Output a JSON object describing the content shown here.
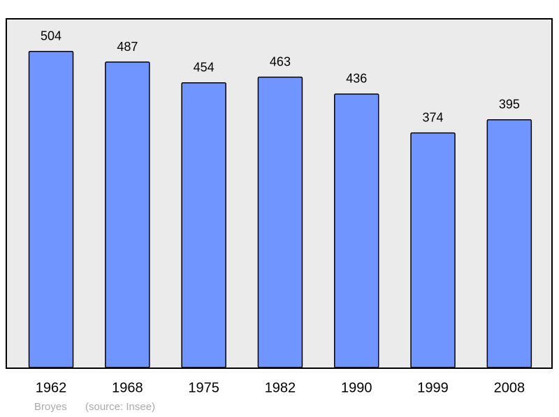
{
  "chart_data": {
    "type": "bar",
    "categories": [
      "1962",
      "1968",
      "1975",
      "1982",
      "1990",
      "1999",
      "2008"
    ],
    "values": [
      504,
      487,
      454,
      463,
      436,
      374,
      395
    ],
    "color": "#7095ff",
    "ylim": [
      0,
      556
    ],
    "grid": false,
    "place": "Broyes",
    "source": "(source: Insee)"
  }
}
